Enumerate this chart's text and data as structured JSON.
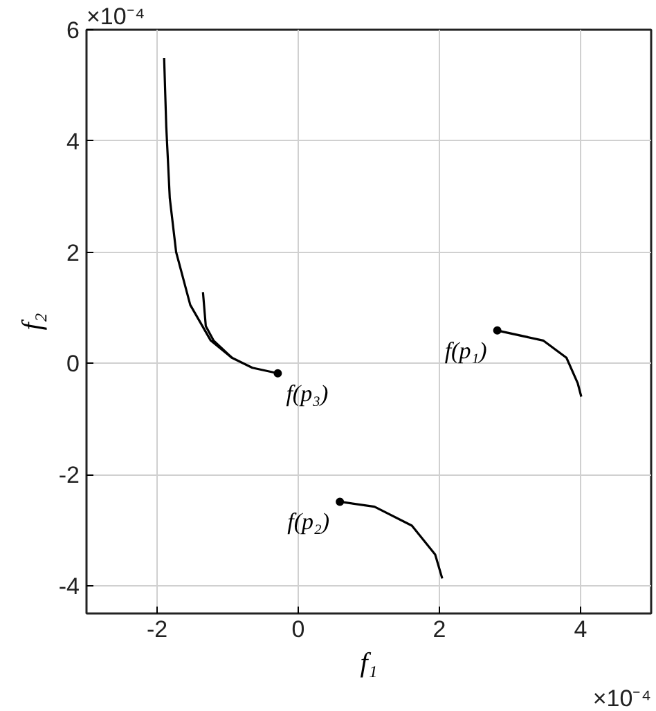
{
  "chart_data": {
    "type": "line",
    "xlabel": "f₁",
    "ylabel": "f₂",
    "xlim": [
      -3,
      5
    ],
    "ylim": [
      -4.5,
      6
    ],
    "xticks": [
      -2,
      0,
      2,
      4
    ],
    "yticks": [
      -4,
      -2,
      0,
      2,
      4,
      6
    ],
    "grid": true,
    "line_style": "solid",
    "series": [
      {
        "color": "#000000",
        "x": [
          -1.9,
          -1.87,
          -1.82,
          -1.73,
          -1.53,
          -1.24,
          -0.94,
          -0.65,
          -0.29
        ],
        "values": [
          5.49,
          4.26,
          2.97,
          2.0,
          1.05,
          0.41,
          0.1,
          -0.08,
          -0.18
        ]
      },
      {
        "color": "#000000",
        "x": [
          -1.35,
          -1.31,
          -1.2,
          -0.94
        ],
        "values": [
          1.28,
          0.67,
          0.41,
          0.1
        ]
      },
      {
        "color": "#000000",
        "x": [
          2.82,
          3.47,
          3.8,
          3.96,
          4.01
        ],
        "values": [
          0.59,
          0.41,
          0.1,
          -0.36,
          -0.6
        ]
      },
      {
        "color": "#000000",
        "x": [
          0.59,
          1.08,
          1.61,
          1.94,
          2.04
        ],
        "values": [
          -2.49,
          -2.58,
          -2.92,
          -3.44,
          -3.87
        ]
      },
      {
        "type": "scatter",
        "marker": "circle",
        "color": "#000000",
        "x": [
          2.82,
          0.59,
          -0.29
        ],
        "values": [
          0.59,
          -2.49,
          -0.18
        ]
      }
    ],
    "annotations": [
      {
        "text": "f(p₁)",
        "x": 2.82,
        "y": 0.59
      },
      {
        "text": "f(p₂)",
        "x": 0.59,
        "y": -2.49
      },
      {
        "text": "f(p₃)",
        "x": -0.29,
        "y": -0.18
      },
      "×10⁻⁴",
      "×10⁻⁴"
    ]
  }
}
